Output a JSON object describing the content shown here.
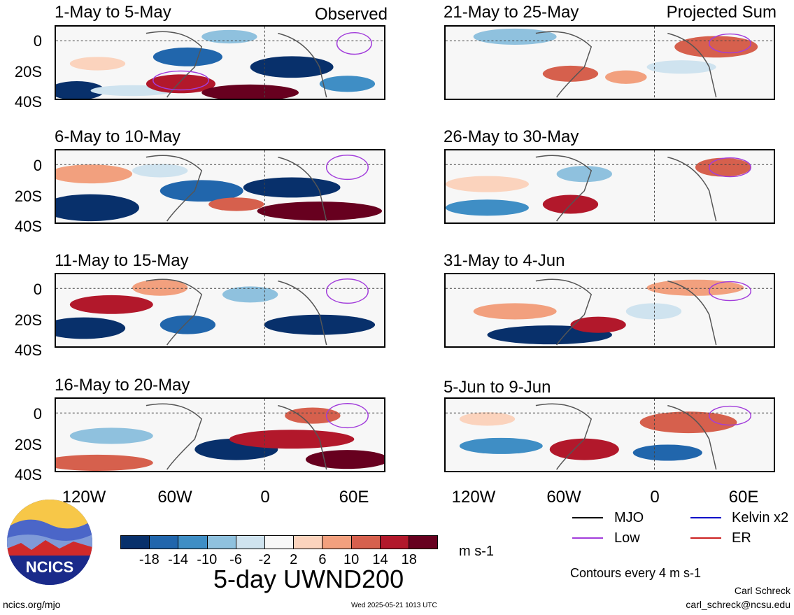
{
  "header": {
    "observed_label": "Observed",
    "projected_label": "Projected Sum"
  },
  "panels": {
    "left": [
      {
        "title": "1-May to 5-May"
      },
      {
        "title": "6-May to 10-May"
      },
      {
        "title": "11-May to 15-May"
      },
      {
        "title": "16-May to 20-May"
      }
    ],
    "right": [
      {
        "title": "21-May to 25-May"
      },
      {
        "title": "26-May to 30-May"
      },
      {
        "title": "31-May to 4-Jun"
      },
      {
        "title": "5-Jun to 9-Jun"
      }
    ]
  },
  "axes": {
    "lat_labels": [
      "0",
      "20S",
      "40S"
    ],
    "lon_labels": [
      "120W",
      "60W",
      "0",
      "60E"
    ]
  },
  "colorbar": {
    "labels": [
      "-18",
      "-14",
      "-10",
      "-6",
      "-2",
      "2",
      "6",
      "10",
      "14",
      "18"
    ],
    "colors": [
      "#08306b",
      "#2166ac",
      "#3f8ec5",
      "#8fc1de",
      "#cfe3ef",
      "#f7f7f7",
      "#fbd3bd",
      "#f2a07e",
      "#d6604d",
      "#b2182b",
      "#67001f"
    ],
    "units": "m s-1"
  },
  "main_title": "5-day UWND200",
  "legend": {
    "items": [
      {
        "label": "MJO",
        "color": "#000000"
      },
      {
        "label": "Kelvin x2",
        "color": "#1010c8"
      },
      {
        "label": "Low",
        "color": "#a23ddb"
      },
      {
        "label": "ER",
        "color": "#cc2222"
      }
    ],
    "contours_note": "Contours every 4 m s-1"
  },
  "logo": {
    "text": "NCICS"
  },
  "footer": {
    "url": "ncics.org/mjo",
    "timestamp": "Wed 2025-05-21 1013 UTC",
    "author": "Carl Schreck",
    "email": "carl_schreck@ncsu.edu"
  }
}
